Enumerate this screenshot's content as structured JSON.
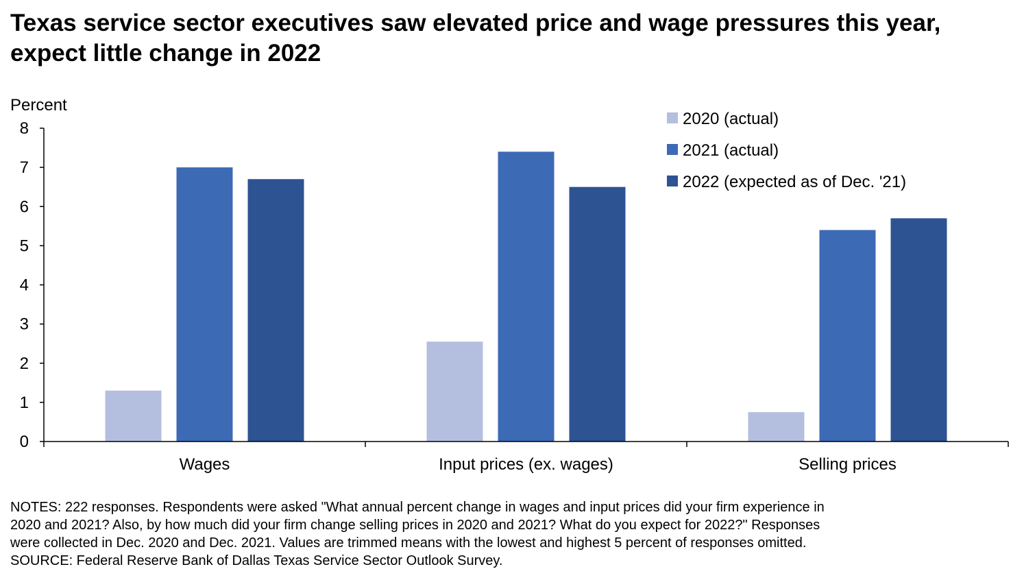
{
  "title": "Texas service sector executives saw elevated price and wage pressures this year, expect little change in 2022",
  "notes": [
    "NOTES: 222 responses. Respondents were asked \"What annual percent change in wages and input prices did your firm experience in",
    "2020 and 2021? Also, by how much did your firm change selling prices in 2020 and 2021? What do you expect for 2022?\" Responses",
    "were collected in Dec. 2020 and Dec. 2021. Values are trimmed means with the lowest and highest 5 percent of responses omitted.",
    "SOURCE: Federal Reserve Bank of Dallas Texas Service Sector Outlook Survey."
  ],
  "chart_data": {
    "type": "bar",
    "title": "Texas service sector executives saw elevated price and wage pressures this year, expect little change in 2022",
    "ylabel": "Percent",
    "xlabel": "",
    "ylim": [
      0,
      8
    ],
    "yticks": [
      0,
      1,
      2,
      3,
      4,
      5,
      6,
      7,
      8
    ],
    "categories": [
      "Wages",
      "Input prices (ex. wages)",
      "Selling prices"
    ],
    "series": [
      {
        "name": "2020 (actual)",
        "color": "#b4bfdf",
        "values": [
          1.3,
          2.55,
          0.75
        ]
      },
      {
        "name": "2021 (actual)",
        "color": "#3d6ab5",
        "values": [
          7.0,
          7.4,
          5.4
        ]
      },
      {
        "name": "2022 (expected as of Dec. '21)",
        "color": "#2d5393",
        "values": [
          6.7,
          6.5,
          5.7
        ]
      }
    ],
    "legend_position": "top-right",
    "grid": false
  }
}
